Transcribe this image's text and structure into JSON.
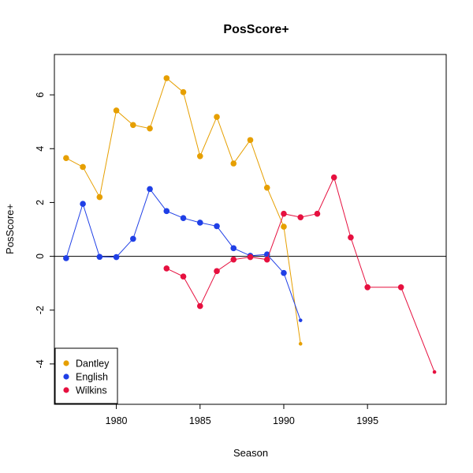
{
  "chart_data": {
    "type": "line",
    "title": "PosScore+",
    "xlabel": "Season",
    "ylabel": "PosScore+",
    "xlim": [
      1976.3,
      1999.7
    ],
    "ylim": [
      -5.5,
      7.5
    ],
    "x_ticks": [
      1980,
      1985,
      1990,
      1995
    ],
    "y_ticks": [
      -4,
      -2,
      0,
      2,
      4,
      6
    ],
    "reference_line_y": 0,
    "legend_position": "bottom-left",
    "grid": false,
    "series": [
      {
        "name": "Dantley",
        "color": "#E69F00",
        "points": [
          {
            "x": 1977,
            "y": 3.65
          },
          {
            "x": 1978,
            "y": 3.32
          },
          {
            "x": 1979,
            "y": 2.2
          },
          {
            "x": 1980,
            "y": 5.42
          },
          {
            "x": 1981,
            "y": 4.88
          },
          {
            "x": 1982,
            "y": 4.75
          },
          {
            "x": 1983,
            "y": 6.62
          },
          {
            "x": 1984,
            "y": 6.1
          },
          {
            "x": 1985,
            "y": 3.72
          },
          {
            "x": 1986,
            "y": 5.18
          },
          {
            "x": 1987,
            "y": 3.45
          },
          {
            "x": 1988,
            "y": 4.32
          },
          {
            "x": 1989,
            "y": 2.55
          },
          {
            "x": 1990,
            "y": 1.1
          },
          {
            "x": 1991,
            "y": -3.25
          }
        ]
      },
      {
        "name": "English",
        "color": "#1F3FE6",
        "points": [
          {
            "x": 1977,
            "y": -0.07
          },
          {
            "x": 1978,
            "y": 1.95
          },
          {
            "x": 1979,
            "y": -0.02
          },
          {
            "x": 1980,
            "y": -0.03
          },
          {
            "x": 1981,
            "y": 0.65
          },
          {
            "x": 1982,
            "y": 2.5
          },
          {
            "x": 1983,
            "y": 1.68
          },
          {
            "x": 1984,
            "y": 1.42
          },
          {
            "x": 1985,
            "y": 1.25
          },
          {
            "x": 1986,
            "y": 1.12
          },
          {
            "x": 1987,
            "y": 0.3
          },
          {
            "x": 1988,
            "y": 0.02
          },
          {
            "x": 1989,
            "y": 0.07
          },
          {
            "x": 1990,
            "y": -0.62
          },
          {
            "x": 1991,
            "y": -2.38
          }
        ]
      },
      {
        "name": "Wilkins",
        "color": "#E6103F",
        "points": [
          {
            "x": 1983,
            "y": -0.45
          },
          {
            "x": 1984,
            "y": -0.75
          },
          {
            "x": 1985,
            "y": -1.85
          },
          {
            "x": 1986,
            "y": -0.55
          },
          {
            "x": 1987,
            "y": -0.12
          },
          {
            "x": 1988,
            "y": -0.03
          },
          {
            "x": 1989,
            "y": -0.12
          },
          {
            "x": 1990,
            "y": 1.58
          },
          {
            "x": 1991,
            "y": 1.45
          },
          {
            "x": 1992,
            "y": 1.58
          },
          {
            "x": 1993,
            "y": 2.93
          },
          {
            "x": 1994,
            "y": 0.7
          },
          {
            "x": 1995,
            "y": -1.15
          },
          {
            "x": 1997,
            "y": -1.15
          },
          {
            "x": 1999,
            "y": -4.3
          }
        ]
      }
    ]
  }
}
